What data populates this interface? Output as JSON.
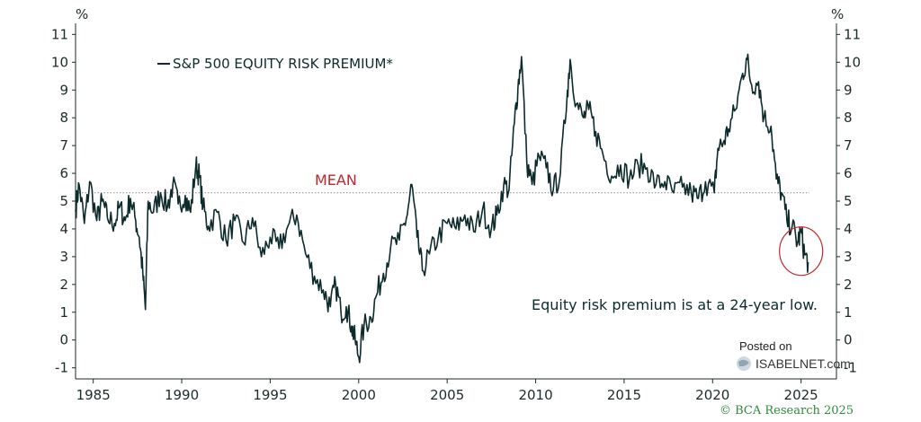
{
  "chart_data": {
    "type": "line",
    "title": "S&P 500 EQUITY RISK PREMIUM*",
    "xlabel": "",
    "ylabel": "%",
    "ylabel_right": "%",
    "xlim": [
      1984,
      2027
    ],
    "ylim": [
      -1.4,
      11.4
    ],
    "x_ticks": [
      1985,
      1990,
      1995,
      2000,
      2005,
      2010,
      2015,
      2020,
      2025
    ],
    "y_ticks": [
      -1,
      0,
      1,
      2,
      3,
      4,
      5,
      6,
      7,
      8,
      9,
      10,
      11
    ],
    "mean": {
      "value": 5.3,
      "label": "MEAN"
    },
    "series": [
      {
        "name": "S&P 500 EQUITY RISK PREMIUM*",
        "color": "#0d2b2b",
        "points": [
          [
            1984.0,
            4.7
          ],
          [
            1984.2,
            5.6
          ],
          [
            1984.5,
            4.2
          ],
          [
            1984.8,
            5.7
          ],
          [
            1985.2,
            4.3
          ],
          [
            1985.5,
            5.0
          ],
          [
            1985.8,
            4.4
          ],
          [
            1986.2,
            4.2
          ],
          [
            1986.5,
            4.8
          ],
          [
            1986.8,
            4.3
          ],
          [
            1987.1,
            5.1
          ],
          [
            1987.4,
            4.3
          ],
          [
            1987.6,
            3.7
          ],
          [
            1987.8,
            2.4
          ],
          [
            1987.95,
            1.1
          ],
          [
            1988.1,
            5.0
          ],
          [
            1988.4,
            4.6
          ],
          [
            1988.8,
            5.3
          ],
          [
            1989.2,
            4.8
          ],
          [
            1989.5,
            5.6
          ],
          [
            1989.8,
            4.9
          ],
          [
            1990.2,
            5.2
          ],
          [
            1990.5,
            4.6
          ],
          [
            1990.8,
            6.3
          ],
          [
            1991.0,
            5.9
          ],
          [
            1991.2,
            4.8
          ],
          [
            1991.5,
            4.1
          ],
          [
            1992.0,
            4.6
          ],
          [
            1992.5,
            3.6
          ],
          [
            1993.0,
            4.3
          ],
          [
            1993.5,
            3.5
          ],
          [
            1994.0,
            4.4
          ],
          [
            1994.5,
            3.0
          ],
          [
            1995.0,
            3.7
          ],
          [
            1995.5,
            3.3
          ],
          [
            1996.0,
            4.1
          ],
          [
            1996.5,
            4.5
          ],
          [
            1997.0,
            3.1
          ],
          [
            1997.5,
            2.3
          ],
          [
            1998.0,
            1.8
          ],
          [
            1998.4,
            1.2
          ],
          [
            1998.7,
            2.0
          ],
          [
            1999.0,
            1.0
          ],
          [
            1999.3,
            1.2
          ],
          [
            1999.6,
            0.5
          ],
          [
            1999.8,
            0.0
          ],
          [
            2000.0,
            -0.6
          ],
          [
            2000.3,
            0.5
          ],
          [
            2000.7,
            0.8
          ],
          [
            2001.0,
            1.6
          ],
          [
            2001.4,
            2.4
          ],
          [
            2001.8,
            3.3
          ],
          [
            2002.3,
            3.6
          ],
          [
            2002.7,
            4.4
          ],
          [
            2003.0,
            5.6
          ],
          [
            2003.3,
            3.7
          ],
          [
            2003.6,
            2.5
          ],
          [
            2004.0,
            3.1
          ],
          [
            2004.5,
            3.7
          ],
          [
            2005.0,
            4.2
          ],
          [
            2005.5,
            4.0
          ],
          [
            2006.0,
            4.5
          ],
          [
            2006.5,
            3.9
          ],
          [
            2007.0,
            4.7
          ],
          [
            2007.5,
            4.0
          ],
          [
            2007.8,
            4.5
          ],
          [
            2008.2,
            5.6
          ],
          [
            2008.5,
            5.4
          ],
          [
            2008.8,
            7.8
          ],
          [
            2009.0,
            9.1
          ],
          [
            2009.2,
            10.2
          ],
          [
            2009.5,
            6.4
          ],
          [
            2009.8,
            5.6
          ],
          [
            2010.2,
            6.6
          ],
          [
            2010.6,
            6.2
          ],
          [
            2011.0,
            5.4
          ],
          [
            2011.4,
            6.0
          ],
          [
            2011.8,
            9.0
          ],
          [
            2011.95,
            10.1
          ],
          [
            2012.3,
            8.5
          ],
          [
            2012.7,
            8.0
          ],
          [
            2013.0,
            8.3
          ],
          [
            2013.4,
            7.5
          ],
          [
            2013.8,
            6.7
          ],
          [
            2014.3,
            5.9
          ],
          [
            2014.8,
            6.3
          ],
          [
            2015.3,
            5.8
          ],
          [
            2015.8,
            6.3
          ],
          [
            2016.3,
            6.2
          ],
          [
            2016.8,
            5.6
          ],
          [
            2017.3,
            5.7
          ],
          [
            2017.8,
            5.3
          ],
          [
            2018.3,
            5.5
          ],
          [
            2018.8,
            5.3
          ],
          [
            2019.2,
            5.1
          ],
          [
            2019.6,
            5.7
          ],
          [
            2020.1,
            5.3
          ],
          [
            2020.3,
            6.9
          ],
          [
            2020.6,
            7.1
          ],
          [
            2020.9,
            7.6
          ],
          [
            2021.3,
            8.3
          ],
          [
            2021.7,
            9.6
          ],
          [
            2021.95,
            10.1
          ],
          [
            2022.2,
            9.2
          ],
          [
            2022.6,
            9.3
          ],
          [
            2022.9,
            8.0
          ],
          [
            2023.3,
            7.7
          ],
          [
            2023.6,
            5.8
          ],
          [
            2023.9,
            5.3
          ],
          [
            2024.2,
            4.3
          ],
          [
            2024.5,
            4.1
          ],
          [
            2024.8,
            3.5
          ],
          [
            2025.0,
            3.9
          ],
          [
            2025.2,
            3.1
          ],
          [
            2025.4,
            2.8
          ]
        ]
      }
    ],
    "annotations": [
      {
        "text": "Equity risk premium is at a 24-year low.",
        "position": "lower-right"
      }
    ],
    "highlight": {
      "type": "circle",
      "x": 2025.0,
      "y": 3.2,
      "color": "#c0262b"
    },
    "legend_position": "top-left",
    "grid": false
  },
  "watermark": {
    "line1": "Posted on",
    "line2": "ISABELNET.com"
  },
  "credit": "© BCA Research 2025",
  "colors": {
    "line": "#0d2b2b",
    "mean": "#c0262b",
    "axis": "#1d2a2a",
    "credit": "#2e8b3a"
  }
}
